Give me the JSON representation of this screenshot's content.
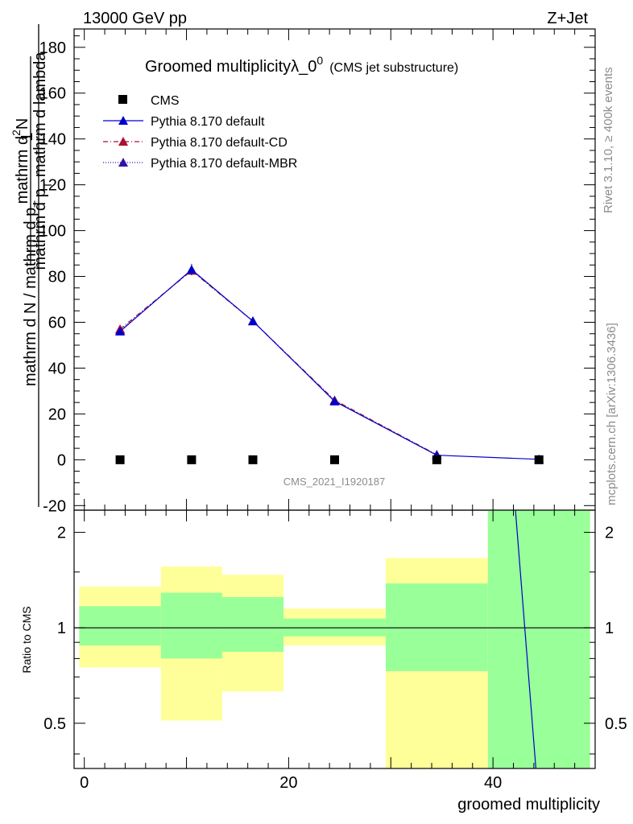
{
  "header": {
    "left": "13000 GeV pp",
    "right": "Z+Jet"
  },
  "chart_data": [
    {
      "type": "line",
      "title": "Groomed multiplicityλ_0",
      "title_sup": "0",
      "subtitle": "(CMS jet substructure)",
      "ylabel_num": "mathrm d",
      "ylabel_num_sup": "2",
      "ylabel_num_tail": "N",
      "ylabel_den": "mathrm d p",
      "ylabel_den_sub": "T",
      "ylabel_den_tail": " mathrm d lambda",
      "ylabel_prefix_top": "1",
      "ylabel_prefix_bottom": "mathrm d N / mathrm d p",
      "ylabel_prefix_sub": "T",
      "ylim": [
        -22,
        188
      ],
      "yticks": [
        -20,
        0,
        20,
        40,
        60,
        80,
        100,
        120,
        140,
        160,
        180
      ],
      "xlim": [
        -1,
        50
      ],
      "legend_placement": "top-left",
      "watermark": "CMS_2021_I1920187",
      "side_note_top": "Rivet 3.1.10, ≥ 400k events",
      "side_note_bottom": "mcplots.cern.ch [arXiv:1306.3436]",
      "series": [
        {
          "name": "CMS",
          "marker": "square",
          "color": "#000000",
          "x": [
            3.5,
            10.5,
            16.5,
            24.5,
            34.5,
            44.5
          ],
          "y": [
            0,
            0,
            0,
            0,
            0,
            0
          ]
        },
        {
          "name": "Pythia 8.170 default",
          "marker": "triangle",
          "color": "#0000cc",
          "line": "solid",
          "x": [
            3.5,
            10.5,
            16.5,
            24.5,
            34.5,
            44.5
          ],
          "y": [
            56,
            83,
            60.5,
            25.5,
            2,
            0.2
          ]
        },
        {
          "name": "Pythia 8.170 default-CD",
          "marker": "triangle",
          "color": "#aa1133",
          "line": "dashdot",
          "x": [
            3.5,
            10.5,
            16.5,
            24.5,
            34.5
          ],
          "y": [
            57,
            82.5,
            60.5,
            26,
            2.2
          ]
        },
        {
          "name": "Pythia 8.170 default-MBR",
          "marker": "triangle",
          "color": "#3311aa",
          "line": "dotted",
          "x": [
            3.5,
            10.5,
            16.5,
            24.5,
            34.5
          ],
          "y": [
            56.5,
            82.7,
            60.5,
            25.8,
            2.1
          ]
        }
      ]
    },
    {
      "type": "area",
      "ylabel": "Ratio to CMS",
      "xlabel": "groomed multiplicity",
      "yscale": "log",
      "ylim": [
        0.36,
        2.35
      ],
      "yticks": [
        0.5,
        1,
        2
      ],
      "ytick_labels": [
        "0.5",
        "1",
        "2"
      ],
      "xlim": [
        -1,
        50
      ],
      "xticks": [
        0,
        20,
        40
      ],
      "reference_line": 1,
      "bins": [
        {
          "x0": -0.5,
          "x1": 7.5,
          "green_lo": 0.88,
          "green_hi": 1.17,
          "yellow_lo": 0.75,
          "yellow_hi": 1.35
        },
        {
          "x0": 7.5,
          "x1": 13.5,
          "green_lo": 0.8,
          "green_hi": 1.29,
          "yellow_lo": 0.51,
          "yellow_hi": 1.56
        },
        {
          "x0": 13.5,
          "x1": 19.5,
          "green_lo": 0.84,
          "green_hi": 1.25,
          "yellow_lo": 0.63,
          "yellow_hi": 1.47
        },
        {
          "x0": 19.5,
          "x1": 29.5,
          "green_lo": 0.94,
          "green_hi": 1.07,
          "yellow_lo": 0.88,
          "yellow_hi": 1.15
        },
        {
          "x0": 29.5,
          "x1": 39.5,
          "green_lo": 0.73,
          "green_hi": 1.38,
          "yellow_lo": 0.36,
          "yellow_hi": 1.66
        },
        {
          "x0": 39.5,
          "x1": 49.5,
          "green_lo": 0.36,
          "green_hi": 2.35,
          "yellow_lo": 0.36,
          "yellow_hi": 2.35
        }
      ],
      "ratio_line": {
        "x": [
          42.2,
          44.2
        ],
        "y": [
          2.35,
          0.36
        ],
        "color": "#0000cc"
      }
    }
  ]
}
